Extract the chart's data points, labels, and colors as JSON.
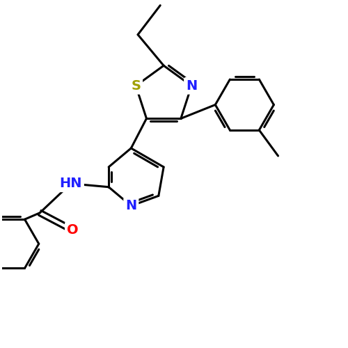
{
  "background_color": "#ffffff",
  "bond_color": "#000000",
  "bond_width": 2.2,
  "atom_colors": {
    "N": "#2020ff",
    "S": "#a0a000",
    "O": "#ff0000",
    "C": "#000000"
  },
  "font_size": 14,
  "fig_size": [
    5.0,
    5.0
  ],
  "dpi": 100
}
